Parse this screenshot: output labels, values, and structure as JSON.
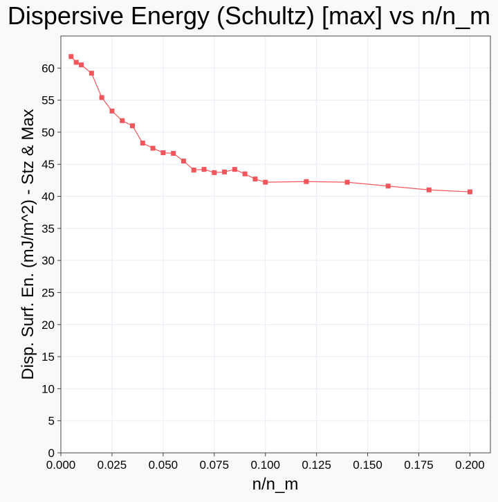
{
  "chart_data": {
    "type": "line",
    "title": "Dispersive Energy (Schultz) [max] vs n/n_m",
    "xlabel": "n/n_m",
    "ylabel": "Disp. Surf. En. (mJ/m^2) - Stz & Max",
    "xlim": [
      0,
      0.21
    ],
    "ylim": [
      0,
      65
    ],
    "x_ticks": [
      "0.000",
      "0.025",
      "0.050",
      "0.075",
      "0.100",
      "0.125",
      "0.150",
      "0.175",
      "0.200"
    ],
    "y_ticks": [
      "0",
      "5",
      "10",
      "15",
      "20",
      "25",
      "30",
      "35",
      "40",
      "45",
      "50",
      "55",
      "60"
    ],
    "grid": true,
    "legend": "none",
    "series": [
      {
        "color": "#f0565c",
        "marker": "square",
        "x": [
          0.005,
          0.0075,
          0.01,
          0.015,
          0.02,
          0.025,
          0.03,
          0.035,
          0.04,
          0.045,
          0.05,
          0.055,
          0.06,
          0.065,
          0.07,
          0.075,
          0.08,
          0.085,
          0.09,
          0.095,
          0.1,
          0.12,
          0.14,
          0.16,
          0.18,
          0.2
        ],
        "y": [
          61.8,
          60.9,
          60.5,
          59.2,
          55.4,
          53.3,
          51.8,
          51.0,
          48.3,
          47.5,
          46.8,
          46.7,
          45.5,
          44.1,
          44.2,
          43.7,
          43.8,
          44.2,
          43.5,
          42.7,
          42.2,
          42.3,
          42.2,
          41.6,
          41.0,
          40.7
        ]
      }
    ]
  }
}
